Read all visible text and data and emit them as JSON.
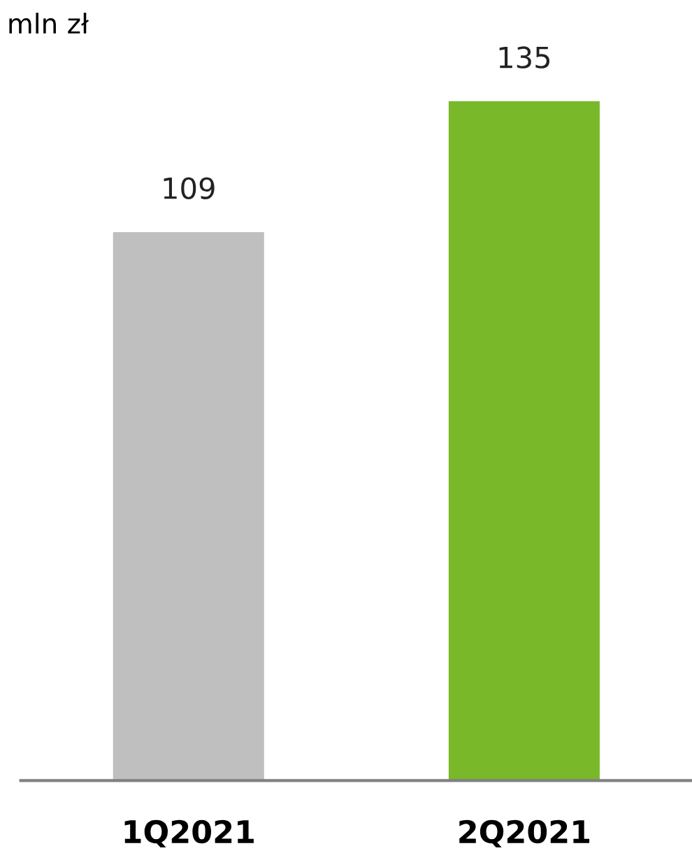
{
  "chart_data": {
    "type": "bar",
    "title": "mln zł",
    "categories": [
      "1Q2021",
      "2Q2021"
    ],
    "values": [
      109,
      135
    ],
    "colors": [
      "#bfbfbf",
      "#78b829"
    ],
    "data_labels": true,
    "grid": false,
    "legend": false
  }
}
